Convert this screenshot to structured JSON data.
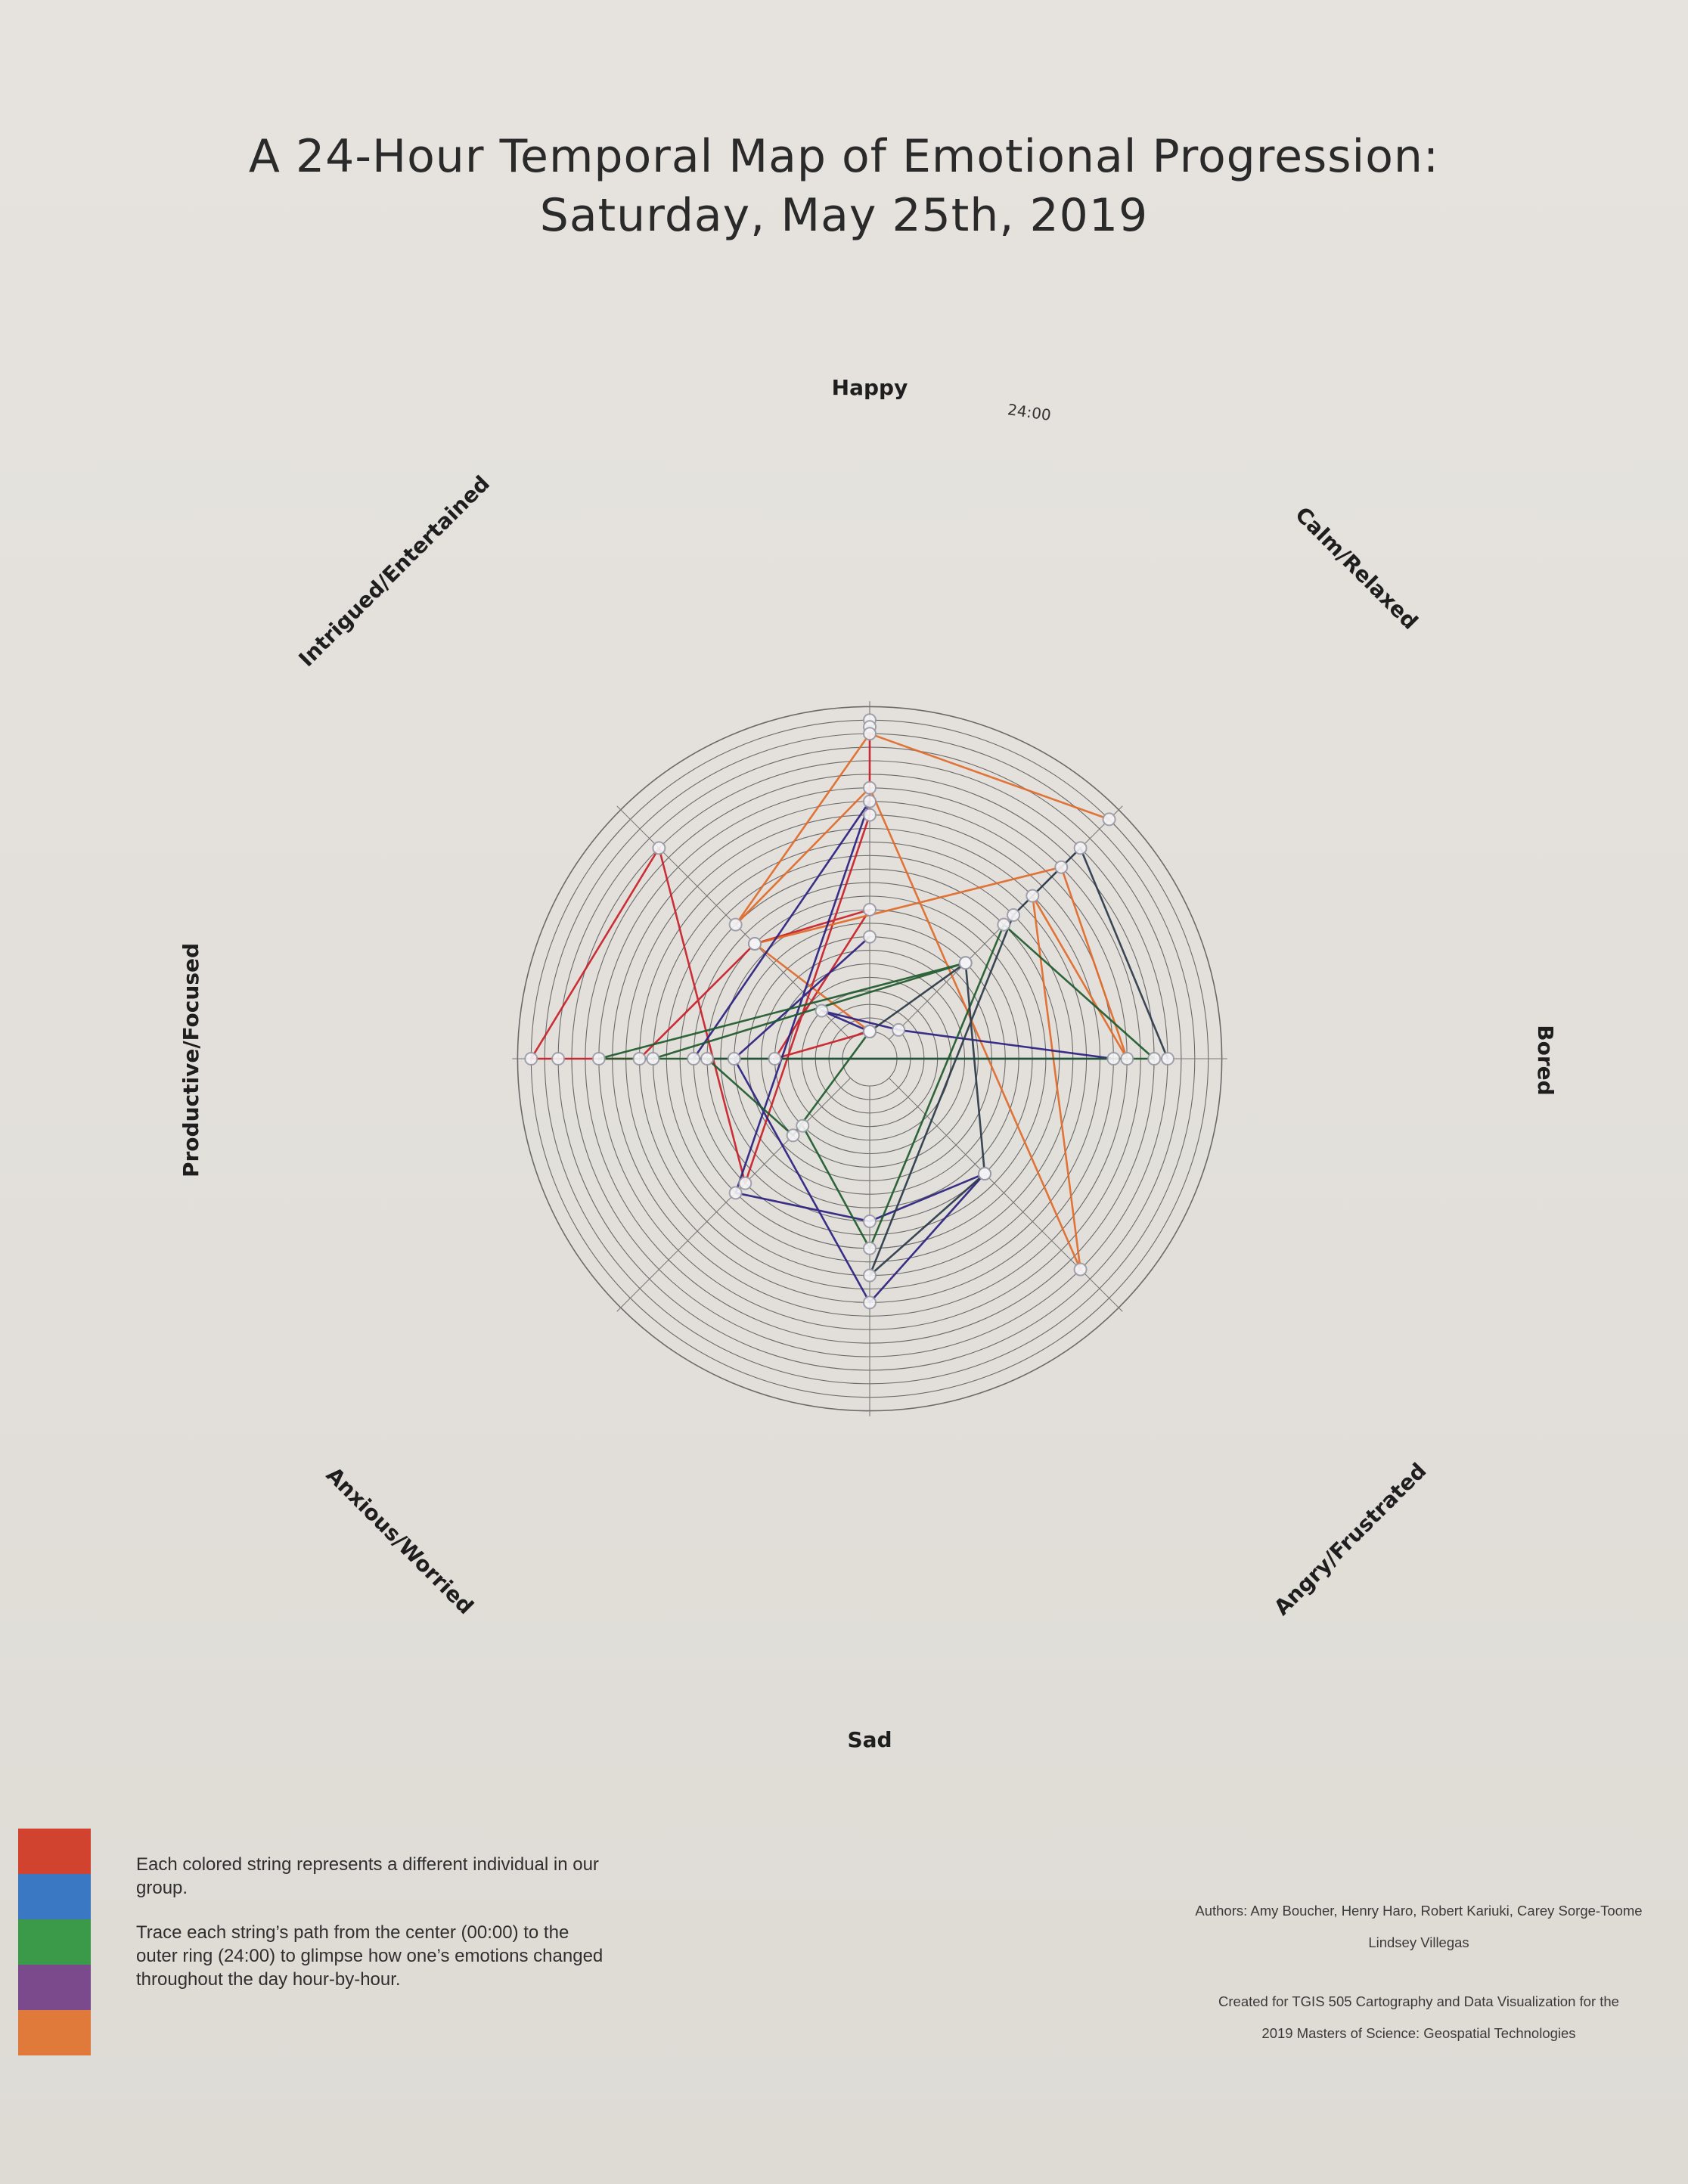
{
  "title": {
    "line1": "A 24-Hour Temporal Map of Emotional Progression:",
    "line2": "Saturday, May 25th, 2019"
  },
  "axis_labels": {
    "happy": "Happy",
    "calm": "Calm/Relaxed",
    "bored": "Bored",
    "angry": "Angry/Frustrated",
    "sad": "Sad",
    "anxious": "Anxious/Worried",
    "productive": "Productive/Focused",
    "intrigued": "Intrigued/Entertained"
  },
  "ring_label": "24:00",
  "legend": {
    "colors": [
      "#d2432f",
      "#3a78c4",
      "#3a9a4a",
      "#7a4a8c",
      "#e07a3a"
    ],
    "line1": "Each colored string represents a different individual in our group.",
    "line2": "Trace each string’s path from the center (00:00) to the outer ring (24:00) to glimpse how one’s emotions changed throughout the day hour-by-hour."
  },
  "credits": {
    "authors": "Authors: Amy Boucher, Henry Haro, Robert Kariuki, Carey Sorge-Toome",
    "authors2": "Lindsey Villegas",
    "course1": "Created for TGIS 505 Cartography and Data Visualization for the",
    "course2": "2019 Masters of Science: Geospatial Technologies"
  },
  "chart_data": {
    "type": "radial-path",
    "axes": [
      "Happy",
      "Calm/Relaxed",
      "Bored",
      "Angry/Frustrated",
      "Sad",
      "Anxious/Worried",
      "Productive/Focused",
      "Intrigued/Entertained"
    ],
    "radial_unit": "hour",
    "radial_range": [
      0,
      24
    ],
    "series": [
      {
        "color": "#c8202a",
        "points": [
          [
            0,
            0
          ],
          [
            6,
            5
          ],
          [
            0,
            9
          ],
          [
            7,
            10
          ],
          [
            6,
            15
          ],
          [
            6,
            21
          ],
          [
            6,
            23
          ],
          [
            7,
            20
          ],
          [
            5,
            11
          ],
          [
            0,
            16
          ],
          [
            0,
            23
          ],
          [
            0,
            22.5
          ]
        ]
      },
      {
        "color": "#e06a2a",
        "points": [
          [
            0,
            0
          ],
          [
            7,
            10
          ],
          [
            1,
            18
          ],
          [
            2,
            17
          ],
          [
            1,
            15
          ],
          [
            3,
            20
          ],
          [
            0,
            18
          ],
          [
            7,
            12
          ],
          [
            0,
            22
          ],
          [
            1,
            23
          ]
        ]
      },
      {
        "color": "#2a2080",
        "points": [
          [
            0,
            0
          ],
          [
            7,
            3
          ],
          [
            1,
            1
          ],
          [
            2,
            16
          ],
          [
            6,
            11
          ],
          [
            0,
            17
          ],
          [
            5,
            12
          ],
          [
            4,
            10
          ],
          [
            3,
            10
          ],
          [
            4,
            16
          ],
          [
            6,
            8
          ],
          [
            0,
            7
          ]
        ]
      },
      {
        "color": "#1e5a2e",
        "points": [
          [
            0,
            0
          ],
          [
            5,
            6
          ],
          [
            6,
            10
          ],
          [
            6,
            18
          ],
          [
            1,
            8
          ],
          [
            6,
            14
          ],
          [
            2,
            19
          ],
          [
            1,
            12
          ],
          [
            4,
            12
          ],
          [
            5,
            5
          ]
        ]
      },
      {
        "color": "#2a3a4a",
        "points": [
          [
            0,
            0
          ],
          [
            1,
            8
          ],
          [
            3,
            10
          ],
          [
            4,
            14
          ],
          [
            1,
            13
          ],
          [
            1,
            20
          ],
          [
            2,
            20
          ]
        ]
      }
    ]
  }
}
